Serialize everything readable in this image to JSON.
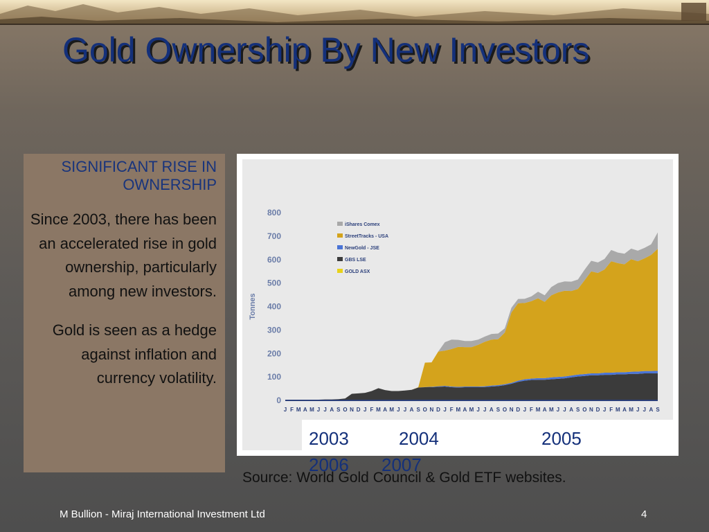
{
  "slide": {
    "title": "Gold Ownership By New Investors",
    "heading": "SIGNIFICANT RISE IN OWNERSHIP",
    "paragraph1": "Since 2003, there has been an accelerated rise in gold ownership, particularly among new investors.",
    "paragraph2": "Gold is seen as a hedge against inflation and currency volatility.",
    "years": [
      "2003",
      "2004",
      "2005",
      "2006",
      "2007"
    ],
    "source": "Source: World Gold Council & Gold ETF websites.",
    "footer_left": "M Bullion - Miraj International Investment Ltd",
    "page_number": "4"
  },
  "colors": {
    "title": "#14307a",
    "panel": "#8b7765",
    "chart_bg": "#e9e9e9"
  },
  "chart_data": {
    "type": "area",
    "stacked": true,
    "ylabel": "Tonnes",
    "ylim": [
      0,
      800
    ],
    "yticks": [
      0,
      100,
      200,
      300,
      400,
      500,
      600,
      700,
      800
    ],
    "grid": false,
    "legend_position": "top-left",
    "x_tick_labels": [
      "J",
      "F",
      "M",
      "A",
      "M",
      "J",
      "J",
      "A",
      "S",
      "O",
      "N",
      "D",
      "J",
      "F",
      "M",
      "A",
      "M",
      "J",
      "J",
      "A",
      "S",
      "O",
      "N",
      "D",
      "J",
      "F",
      "M",
      "A",
      "M",
      "J",
      "J",
      "A",
      "S",
      "O",
      "N",
      "D",
      "J",
      "F",
      "M",
      "A",
      "M",
      "J",
      "J",
      "A",
      "S",
      "O",
      "N",
      "D",
      "J",
      "F",
      "M",
      "A",
      "M",
      "J",
      "J",
      "A",
      "S"
    ],
    "series": [
      {
        "name": "GOLD ASX",
        "color": "#e8d21a",
        "values": [
          0,
          0,
          0,
          0,
          0,
          0,
          0,
          0,
          0,
          0,
          0,
          0,
          0,
          0,
          0,
          0,
          0,
          0,
          0,
          0,
          0,
          0,
          0,
          0,
          1,
          1,
          1,
          1,
          1,
          1,
          1,
          1,
          1,
          1,
          1,
          1,
          2,
          2,
          2,
          2,
          2,
          2,
          2,
          2,
          2,
          2,
          3,
          3,
          3,
          3,
          3,
          3,
          3,
          3,
          3,
          3,
          3
        ]
      },
      {
        "name": "GBS LSE",
        "color": "#3b3b3b",
        "values": [
          2,
          2,
          2,
          2,
          3,
          3,
          4,
          4,
          5,
          8,
          28,
          30,
          32,
          40,
          52,
          44,
          40,
          40,
          42,
          45,
          55,
          56,
          56,
          58,
          58,
          55,
          54,
          55,
          55,
          55,
          56,
          58,
          60,
          64,
          70,
          78,
          82,
          85,
          86,
          86,
          88,
          90,
          92,
          96,
          100,
          102,
          104,
          104,
          106,
          106,
          108,
          108,
          110,
          110,
          112,
          112,
          113
        ]
      },
      {
        "name": "NewGold - JSE",
        "color": "#4a74d6",
        "values": [
          0,
          0,
          0,
          0,
          0,
          0,
          0,
          0,
          0,
          0,
          0,
          0,
          0,
          0,
          0,
          0,
          0,
          0,
          0,
          0,
          0,
          1,
          2,
          2,
          3,
          3,
          3,
          3,
          3,
          3,
          3,
          4,
          4,
          4,
          4,
          5,
          6,
          6,
          7,
          7,
          8,
          8,
          8,
          8,
          8,
          8,
          8,
          8,
          9,
          9,
          9,
          9,
          9,
          10,
          10,
          10,
          10
        ]
      },
      {
        "name": "StreetTracks - USA",
        "color": "#d4a31c",
        "values": [
          0,
          0,
          0,
          0,
          0,
          0,
          0,
          0,
          0,
          0,
          0,
          0,
          0,
          0,
          0,
          0,
          0,
          0,
          0,
          0,
          1,
          104,
          104,
          148,
          150,
          160,
          170,
          168,
          168,
          178,
          190,
          196,
          196,
          220,
          300,
          330,
          325,
          330,
          340,
          325,
          350,
          360,
          365,
          360,
          365,
          400,
          435,
          428,
          440,
          475,
          465,
          460,
          480,
          470,
          480,
          495,
          520
        ]
      },
      {
        "name": "iShares Comex",
        "color": "#a9a9a9",
        "values": [
          0,
          0,
          0,
          0,
          0,
          0,
          0,
          0,
          0,
          0,
          0,
          0,
          0,
          0,
          0,
          0,
          0,
          0,
          0,
          0,
          0,
          0,
          0,
          0,
          36,
          40,
          30,
          26,
          26,
          22,
          22,
          24,
          24,
          18,
          20,
          18,
          18,
          20,
          28,
          28,
          35,
          40,
          40,
          40,
          40,
          45,
          45,
          45,
          45,
          48,
          45,
          45,
          45,
          45,
          45,
          45,
          70
        ]
      }
    ]
  }
}
